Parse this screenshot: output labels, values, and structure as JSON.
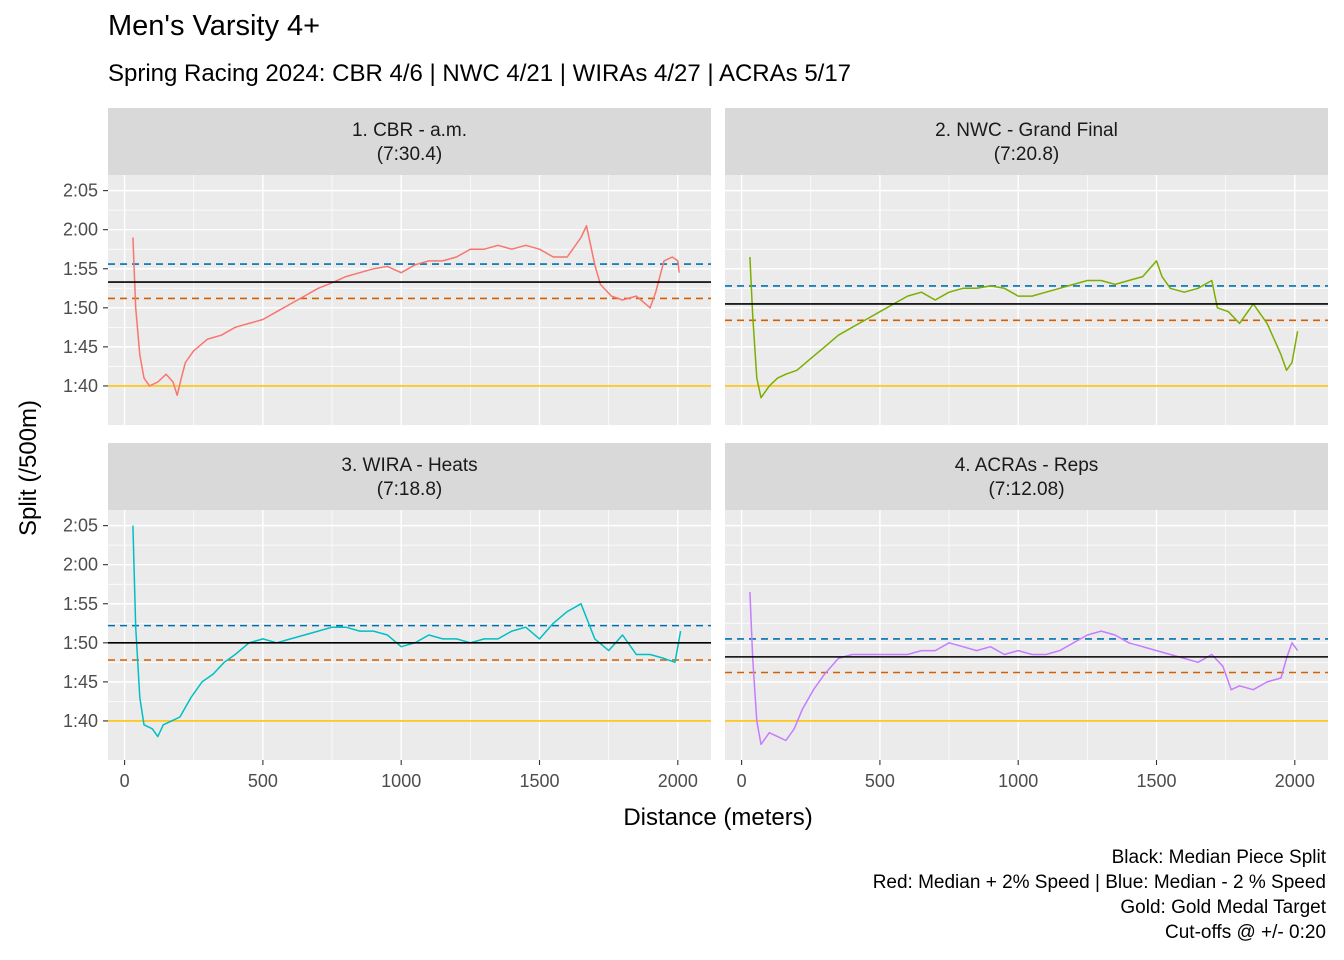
{
  "title": "Men's Varsity 4+",
  "subtitle": "Spring Racing 2024: CBR 4/6 | NWC 4/21 | WIRAs 4/27 | ACRAs 5/17",
  "xlabel": "Distance (meters)",
  "ylabel": "Split (/500m)",
  "caption": [
    "Black: Median Piece Split",
    "Red: Median + 2% Speed | Blue: Median - 2 % Speed",
    "Gold: Gold Medal Target",
    "Cut-offs @ +/- 0:20"
  ],
  "colors": {
    "median": "#000000",
    "plus2": "#D55E00",
    "minus2": "#0072B2",
    "gold": "#FFC20A",
    "panel_bg": "#EBEBEB",
    "strip_bg": "#D9D9D9",
    "grid": "#FFFFFF"
  },
  "chart_data": {
    "type": "line",
    "facets": "2x2",
    "x_ticks": [
      0,
      500,
      1000,
      1500,
      2000
    ],
    "x_tick_labels": [
      "0",
      "500",
      "1000",
      "1500",
      "2000"
    ],
    "xlim": [
      -60,
      2120
    ],
    "y_ticks_sec": [
      100,
      105,
      110,
      115,
      120,
      125
    ],
    "y_tick_labels": [
      "1:40",
      "1:45",
      "1:50",
      "1:55",
      "2:00",
      "2:05"
    ],
    "ylim_sec": [
      95,
      127
    ],
    "gold_target_sec": 100,
    "panels": [
      {
        "strip_line1": "1. CBR - a.m.",
        "strip_line2": "(7:30.4)",
        "color": "#F8766D",
        "median_sec": 113.3,
        "plus2_sec": 111.2,
        "minus2_sec": 115.6,
        "points": [
          [
            30,
            119
          ],
          [
            40,
            110
          ],
          [
            55,
            104
          ],
          [
            70,
            101
          ],
          [
            90,
            100
          ],
          [
            120,
            100.5
          ],
          [
            150,
            101.5
          ],
          [
            175,
            100.5
          ],
          [
            190,
            98.8
          ],
          [
            205,
            101
          ],
          [
            220,
            103
          ],
          [
            250,
            104.5
          ],
          [
            300,
            106
          ],
          [
            350,
            106.5
          ],
          [
            400,
            107.5
          ],
          [
            450,
            108
          ],
          [
            500,
            108.5
          ],
          [
            550,
            109.5
          ],
          [
            600,
            110.5
          ],
          [
            650,
            111.5
          ],
          [
            700,
            112.5
          ],
          [
            750,
            113.2
          ],
          [
            800,
            114
          ],
          [
            850,
            114.5
          ],
          [
            900,
            115
          ],
          [
            950,
            115.3
          ],
          [
            1000,
            114.5
          ],
          [
            1050,
            115.5
          ],
          [
            1100,
            116
          ],
          [
            1150,
            116
          ],
          [
            1200,
            116.5
          ],
          [
            1250,
            117.5
          ],
          [
            1300,
            117.5
          ],
          [
            1350,
            118
          ],
          [
            1400,
            117.5
          ],
          [
            1450,
            118
          ],
          [
            1500,
            117.5
          ],
          [
            1550,
            116.5
          ],
          [
            1600,
            116.5
          ],
          [
            1650,
            119
          ],
          [
            1670,
            120.5
          ],
          [
            1700,
            115.5
          ],
          [
            1720,
            113
          ],
          [
            1760,
            111.5
          ],
          [
            1800,
            111
          ],
          [
            1850,
            111.5
          ],
          [
            1900,
            110
          ],
          [
            1920,
            112
          ],
          [
            1950,
            116
          ],
          [
            1980,
            116.5
          ],
          [
            2000,
            116
          ],
          [
            2005,
            114.5
          ]
        ]
      },
      {
        "strip_line1": "2. NWC - Grand Final",
        "strip_line2": "(7:20.8)",
        "color": "#7CAE00",
        "median_sec": 110.5,
        "plus2_sec": 108.4,
        "minus2_sec": 112.8,
        "points": [
          [
            30,
            116.5
          ],
          [
            40,
            109
          ],
          [
            55,
            101
          ],
          [
            70,
            98.5
          ],
          [
            100,
            100
          ],
          [
            130,
            101
          ],
          [
            160,
            101.5
          ],
          [
            200,
            102
          ],
          [
            250,
            103.5
          ],
          [
            300,
            105
          ],
          [
            350,
            106.5
          ],
          [
            400,
            107.5
          ],
          [
            450,
            108.5
          ],
          [
            500,
            109.5
          ],
          [
            550,
            110.5
          ],
          [
            600,
            111.5
          ],
          [
            650,
            112
          ],
          [
            700,
            111
          ],
          [
            750,
            112
          ],
          [
            800,
            112.5
          ],
          [
            850,
            112.5
          ],
          [
            900,
            112.8
          ],
          [
            950,
            112.5
          ],
          [
            1000,
            111.5
          ],
          [
            1050,
            111.5
          ],
          [
            1100,
            112
          ],
          [
            1150,
            112.5
          ],
          [
            1200,
            113
          ],
          [
            1250,
            113.5
          ],
          [
            1300,
            113.5
          ],
          [
            1350,
            113
          ],
          [
            1400,
            113.5
          ],
          [
            1450,
            114
          ],
          [
            1500,
            116
          ],
          [
            1520,
            114
          ],
          [
            1550,
            112.5
          ],
          [
            1600,
            112
          ],
          [
            1650,
            112.5
          ],
          [
            1700,
            113.5
          ],
          [
            1720,
            110
          ],
          [
            1760,
            109.5
          ],
          [
            1800,
            108
          ],
          [
            1850,
            110.5
          ],
          [
            1900,
            108
          ],
          [
            1950,
            104
          ],
          [
            1970,
            102
          ],
          [
            1990,
            103
          ],
          [
            2010,
            107
          ]
        ]
      },
      {
        "strip_line1": "3. WIRA - Heats",
        "strip_line2": "(7:18.8)",
        "color": "#00BFC4",
        "median_sec": 110,
        "plus2_sec": 107.8,
        "minus2_sec": 112.2,
        "points": [
          [
            30,
            125
          ],
          [
            40,
            112
          ],
          [
            55,
            103
          ],
          [
            70,
            99.5
          ],
          [
            100,
            99
          ],
          [
            120,
            98
          ],
          [
            140,
            99.5
          ],
          [
            170,
            100
          ],
          [
            200,
            100.5
          ],
          [
            240,
            103
          ],
          [
            280,
            105
          ],
          [
            320,
            106
          ],
          [
            360,
            107.5
          ],
          [
            400,
            108.5
          ],
          [
            450,
            110
          ],
          [
            500,
            110.5
          ],
          [
            550,
            110
          ],
          [
            600,
            110.5
          ],
          [
            650,
            111
          ],
          [
            700,
            111.5
          ],
          [
            750,
            112
          ],
          [
            800,
            112
          ],
          [
            850,
            111.5
          ],
          [
            900,
            111.5
          ],
          [
            950,
            111
          ],
          [
            1000,
            109.5
          ],
          [
            1050,
            110
          ],
          [
            1100,
            111
          ],
          [
            1150,
            110.5
          ],
          [
            1200,
            110.5
          ],
          [
            1250,
            110
          ],
          [
            1300,
            110.5
          ],
          [
            1350,
            110.5
          ],
          [
            1400,
            111.5
          ],
          [
            1450,
            112
          ],
          [
            1500,
            110.5
          ],
          [
            1550,
            112.5
          ],
          [
            1600,
            114
          ],
          [
            1650,
            115
          ],
          [
            1700,
            110.5
          ],
          [
            1750,
            109
          ],
          [
            1800,
            111
          ],
          [
            1850,
            108.5
          ],
          [
            1900,
            108.5
          ],
          [
            1950,
            108
          ],
          [
            1990,
            107.5
          ],
          [
            2010,
            111.5
          ]
        ]
      },
      {
        "strip_line1": "4. ACRAs - Reps",
        "strip_line2": "(7:12.08)",
        "color": "#C77CFF",
        "median_sec": 108.2,
        "plus2_sec": 106.2,
        "minus2_sec": 110.5,
        "points": [
          [
            30,
            116.5
          ],
          [
            40,
            108
          ],
          [
            55,
            100
          ],
          [
            70,
            97
          ],
          [
            100,
            98.5
          ],
          [
            130,
            98
          ],
          [
            160,
            97.5
          ],
          [
            190,
            99
          ],
          [
            220,
            101.5
          ],
          [
            260,
            104
          ],
          [
            300,
            106
          ],
          [
            350,
            108
          ],
          [
            400,
            108.5
          ],
          [
            450,
            108.5
          ],
          [
            500,
            108.5
          ],
          [
            550,
            108.5
          ],
          [
            600,
            108.5
          ],
          [
            650,
            109
          ],
          [
            700,
            109
          ],
          [
            750,
            110
          ],
          [
            800,
            109.5
          ],
          [
            850,
            109
          ],
          [
            900,
            109.5
          ],
          [
            950,
            108.5
          ],
          [
            1000,
            109
          ],
          [
            1050,
            108.5
          ],
          [
            1100,
            108.5
          ],
          [
            1150,
            109
          ],
          [
            1200,
            110
          ],
          [
            1250,
            111
          ],
          [
            1300,
            111.5
          ],
          [
            1350,
            111
          ],
          [
            1400,
            110
          ],
          [
            1450,
            109.5
          ],
          [
            1500,
            109
          ],
          [
            1550,
            108.5
          ],
          [
            1600,
            108
          ],
          [
            1650,
            107.5
          ],
          [
            1700,
            108.5
          ],
          [
            1740,
            107
          ],
          [
            1770,
            104
          ],
          [
            1800,
            104.5
          ],
          [
            1850,
            104
          ],
          [
            1900,
            105
          ],
          [
            1950,
            105.5
          ],
          [
            1970,
            108
          ],
          [
            1990,
            110
          ],
          [
            2010,
            109
          ]
        ]
      }
    ]
  }
}
